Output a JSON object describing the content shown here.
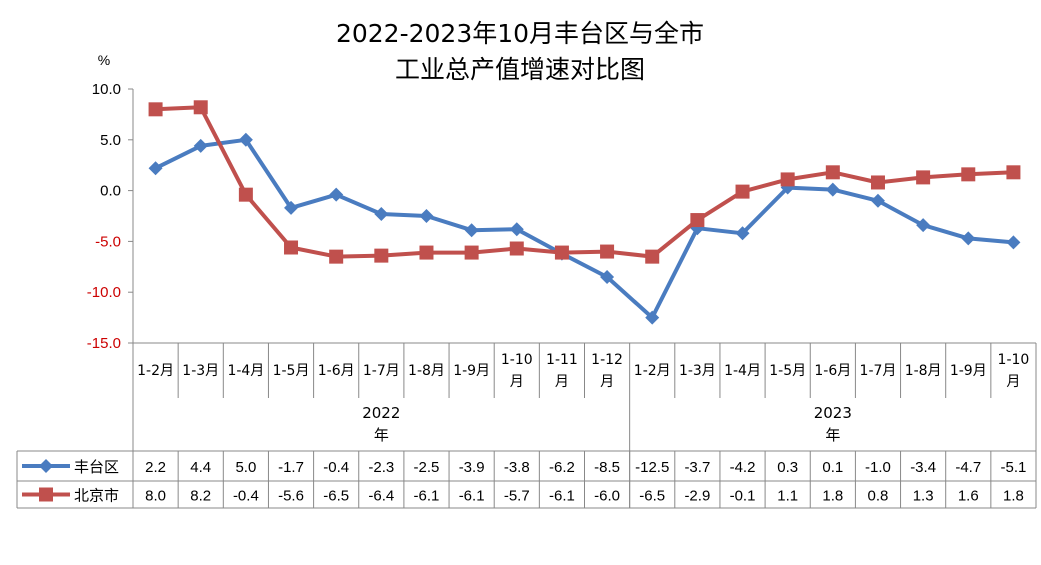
{
  "chart_data": {
    "type": "line",
    "title_line1": "2022-2023年10月丰台区与全市",
    "title_line2": "工业总产值增速对比图",
    "ylabel": "%",
    "ylim": [
      -15,
      10
    ],
    "yticks": [
      "10.0",
      "5.0",
      "0.0",
      "-5.0",
      "-10.0",
      "-15.0"
    ],
    "grid": false,
    "legend": "data-table-left",
    "categories": [
      [
        "1-2月"
      ],
      [
        "1-3月"
      ],
      [
        "1-4月"
      ],
      [
        "1-5月"
      ],
      [
        "1-6月"
      ],
      [
        "1-7月"
      ],
      [
        "1-8月"
      ],
      [
        "1-9月"
      ],
      [
        "1-10",
        "月"
      ],
      [
        "1-11",
        "月"
      ],
      [
        "1-12",
        "月"
      ],
      [
        "1-2月"
      ],
      [
        "1-3月"
      ],
      [
        "1-4月"
      ],
      [
        "1-5月"
      ],
      [
        "1-6月"
      ],
      [
        "1-7月"
      ],
      [
        "1-8月"
      ],
      [
        "1-9月"
      ],
      [
        "1-10",
        "月"
      ]
    ],
    "years": [
      {
        "label": [
          "2022",
          "年"
        ],
        "span": [
          0,
          10
        ]
      },
      {
        "label": [
          "2023",
          "年"
        ],
        "span": [
          11,
          19
        ]
      }
    ],
    "series": [
      {
        "name": "丰台区",
        "color": "#4a7cc0",
        "marker": "diamond",
        "values": [
          2.2,
          4.4,
          5.0,
          -1.7,
          -0.4,
          -2.3,
          -2.5,
          -3.9,
          -3.8,
          -6.2,
          -8.5,
          -12.5,
          -3.7,
          -4.2,
          0.3,
          0.1,
          -1.0,
          -3.4,
          -4.7,
          -5.1
        ],
        "labels": [
          "2.2",
          "4.4",
          "5.0",
          "-1.7",
          "-0.4",
          "-2.3",
          "-2.5",
          "-3.9",
          "-3.8",
          "-6.2",
          "-8.5",
          "-12.5",
          "-3.7",
          "-4.2",
          "0.3",
          "0.1",
          "-1.0",
          "-3.4",
          "-4.7",
          "-5.1"
        ]
      },
      {
        "name": "北京市",
        "color": "#c0504d",
        "marker": "square",
        "values": [
          8.0,
          8.2,
          -0.4,
          -5.6,
          -6.5,
          -6.4,
          -6.1,
          -6.1,
          -5.7,
          -6.1,
          -6.0,
          -6.5,
          -2.9,
          -0.1,
          1.1,
          1.8,
          0.8,
          1.3,
          1.6,
          1.8
        ],
        "labels": [
          "8.0",
          "8.2",
          "-0.4",
          "-5.6",
          "-6.5",
          "-6.4",
          "-6.1",
          "-6.1",
          "-5.7",
          "-6.1",
          "-6.0",
          "-6.5",
          "-2.9",
          "-0.1",
          "1.1",
          "1.8",
          "0.8",
          "1.3",
          "1.6",
          "1.8"
        ]
      }
    ]
  }
}
